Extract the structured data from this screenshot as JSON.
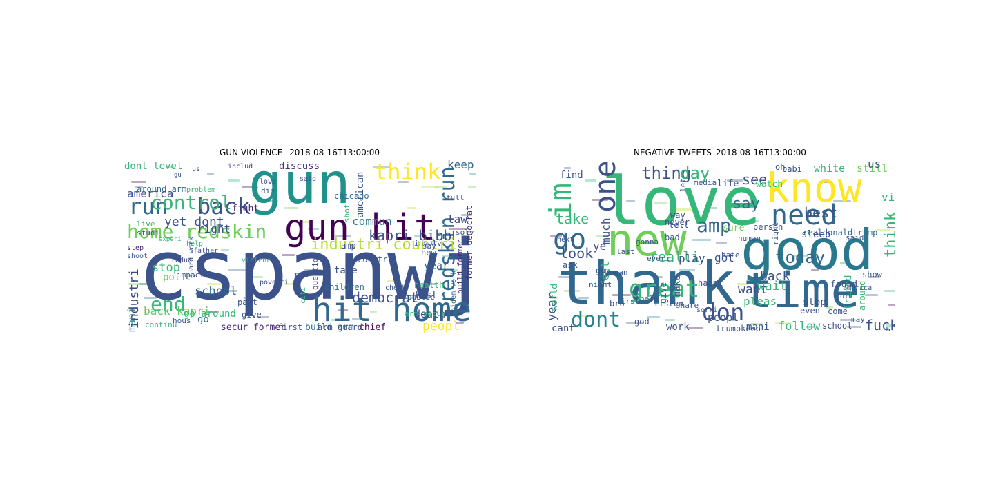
{
  "panels": [
    {
      "title": "GUN VIOLENCE _2018-08-16T13:00:00",
      "words": [
        {
          "text": "cspanwj",
          "color": "#3b528b"
        },
        {
          "text": "gun",
          "color": "#21918c"
        },
        {
          "text": "gun hit",
          "color": "#440154"
        },
        {
          "text": "hit home",
          "color": "#31688e"
        },
        {
          "text": "back",
          "color": "#3b528b"
        },
        {
          "text": "run",
          "color": "#31688e"
        },
        {
          "text": "control",
          "color": "#35b779"
        },
        {
          "text": "home redskin",
          "color": "#6ece58"
        },
        {
          "text": "think",
          "color": "#fde725"
        },
        {
          "text": "redskin run",
          "color": "#31688e"
        },
        {
          "text": "kapri bibb",
          "color": "#3b528b"
        },
        {
          "text": "industri countri",
          "color": "#b5de2b"
        },
        {
          "text": "end",
          "color": "#35b779"
        },
        {
          "text": "industri",
          "color": "#3e4989"
        },
        {
          "text": "mani",
          "color": "#26828e"
        },
        {
          "text": "yet dont",
          "color": "#3b528b"
        },
        {
          "text": "dont level",
          "color": "#35b779"
        },
        {
          "text": "discuss",
          "color": "#46327e"
        },
        {
          "text": "includ",
          "color": "#414487"
        },
        {
          "text": "keep",
          "color": "#31688e"
        },
        {
          "text": "around arm",
          "color": "#31688e"
        },
        {
          "text": "america",
          "color": "#3b528b"
        },
        {
          "text": "fight",
          "color": "#482878"
        },
        {
          "text": "right",
          "color": "#3b528b"
        },
        {
          "text": "commun",
          "color": "#26828e"
        },
        {
          "text": "american",
          "color": "#3b528b"
        },
        {
          "text": "law",
          "color": "#3e4989"
        },
        {
          "text": "former democrat",
          "color": "#472d7b"
        },
        {
          "text": "build former",
          "color": "#472d7b"
        },
        {
          "text": "stop",
          "color": "#35b779"
        },
        {
          "text": "school",
          "color": "#31688e"
        },
        {
          "text": "back kapri",
          "color": "#5ec962"
        },
        {
          "text": "go around",
          "color": "#35b779"
        },
        {
          "text": "democrat",
          "color": "#3b528b"
        },
        {
          "text": "peopl",
          "color": "#fde725"
        },
        {
          "text": "death",
          "color": "#3e4989"
        },
        {
          "text": "last",
          "color": "#3b528b"
        },
        {
          "text": "year",
          "color": "#31688e"
        },
        {
          "text": "secur former",
          "color": "#482878"
        },
        {
          "text": "build arm",
          "color": "#31688e"
        },
        {
          "text": "chief",
          "color": "#440154"
        },
        {
          "text": "go",
          "color": "#31688e"
        },
        {
          "text": "chicago",
          "color": "#31688e"
        },
        {
          "text": "shot",
          "color": "#35b779"
        },
        {
          "text": "children",
          "color": "#31688e"
        },
        {
          "text": "first",
          "color": "#3b528b"
        },
        {
          "text": "problem",
          "color": "#35b779"
        },
        {
          "text": "live",
          "color": "#35b779"
        },
        {
          "text": "studi",
          "color": "#3b528b"
        },
        {
          "text": "step",
          "color": "#482878"
        },
        {
          "text": "shoot",
          "color": "#3b528b"
        },
        {
          "text": "experi",
          "color": "#35b779"
        },
        {
          "text": "reduc",
          "color": "#3e4989"
        },
        {
          "text": "impact",
          "color": "#3b528b"
        },
        {
          "text": "polic",
          "color": "#6ece58"
        },
        {
          "text": "health",
          "color": "#35b779"
        },
        {
          "text": "take",
          "color": "#3b528b"
        },
        {
          "text": "amp",
          "color": "#3b528b"
        },
        {
          "text": "new",
          "color": "#31688e"
        },
        {
          "text": "say",
          "color": "#3b528b"
        },
        {
          "text": "solv",
          "color": "#3b528b"
        },
        {
          "text": "involv",
          "color": "#3b528b"
        },
        {
          "text": "question",
          "color": "#3b528b"
        },
        {
          "text": "public",
          "color": "#3b528b"
        },
        {
          "text": "full",
          "color": "#3b528b"
        },
        {
          "text": "die",
          "color": "#3b528b"
        },
        {
          "text": "love",
          "color": "#3b528b"
        },
        {
          "text": "help",
          "color": "#35b779"
        },
        {
          "text": "father",
          "color": "#3b528b"
        },
        {
          "text": "guard work",
          "color": "#3b528b"
        },
        {
          "text": "give",
          "color": "#3b528b"
        },
        {
          "text": "part",
          "color": "#3b528b"
        },
        {
          "text": "hous",
          "color": "#3b528b"
        },
        {
          "text": "continu",
          "color": "#35b779"
        },
        {
          "text": "epidem work",
          "color": "#31688e"
        },
        {
          "text": "arm guard",
          "color": "#3b528b"
        },
        {
          "text": "arm secur",
          "color": "#35b779"
        },
        {
          "text": "countri",
          "color": "#3b528b"
        },
        {
          "text": "said",
          "color": "#3b528b"
        },
        {
          "text": "us",
          "color": "#3b528b"
        },
        {
          "text": "gu",
          "color": "#3b528b"
        },
        {
          "text": "poverti",
          "color": "#3b528b"
        },
        {
          "text": "violenc",
          "color": "#35b779"
        },
        {
          "text": "citi",
          "color": "#35b779"
        },
        {
          "text": "time",
          "color": "#3b528b"
        },
        {
          "text": "check",
          "color": "#3b528b"
        }
      ]
    },
    {
      "title": "NEGATIVE TWEETS_2018-08-16T13:00:00",
      "words": [
        {
          "text": "love",
          "color": "#35b779"
        },
        {
          "text": "thank",
          "color": "#31688e"
        },
        {
          "text": "good",
          "color": "#2a788e"
        },
        {
          "text": "time",
          "color": "#31688e"
        },
        {
          "text": "know",
          "color": "#fde725"
        },
        {
          "text": "new",
          "color": "#6ece58"
        },
        {
          "text": "need",
          "color": "#31688e"
        },
        {
          "text": "im",
          "color": "#35b779"
        },
        {
          "text": "one",
          "color": "#3b528b"
        },
        {
          "text": "go",
          "color": "#31688e"
        },
        {
          "text": "amp",
          "color": "#31688e"
        },
        {
          "text": "great",
          "color": "#35b779"
        },
        {
          "text": "dont",
          "color": "#26828e"
        },
        {
          "text": "don",
          "color": "#3b528b"
        },
        {
          "text": "thing",
          "color": "#3b528b"
        },
        {
          "text": "day",
          "color": "#35b779"
        },
        {
          "text": "much",
          "color": "#3b528b"
        },
        {
          "text": "see",
          "color": "#3b528b"
        },
        {
          "text": "say",
          "color": "#31688e"
        },
        {
          "text": "take",
          "color": "#35b779"
        },
        {
          "text": "best",
          "color": "#3b528b"
        },
        {
          "text": "look",
          "color": "#3b528b"
        },
        {
          "text": "realli",
          "color": "#35b779"
        },
        {
          "text": "play",
          "color": "#3b528b"
        },
        {
          "text": "got",
          "color": "#3b528b"
        },
        {
          "text": "today",
          "color": "#31688e"
        },
        {
          "text": "back",
          "color": "#3b528b"
        },
        {
          "text": "want",
          "color": "#3b528b"
        },
        {
          "text": "wait",
          "color": "#35b779"
        },
        {
          "text": "think",
          "color": "#35b779"
        },
        {
          "text": "ye",
          "color": "#3b528b"
        },
        {
          "text": "year",
          "color": "#3b528b"
        },
        {
          "text": "pleas",
          "color": "#35b779"
        },
        {
          "text": "stop",
          "color": "#3b528b"
        },
        {
          "text": "work",
          "color": "#3b528b"
        },
        {
          "text": "cant",
          "color": "#3b528b"
        },
        {
          "text": "mani",
          "color": "#3b528b"
        },
        {
          "text": "follow",
          "color": "#35b779"
        },
        {
          "text": "fuck",
          "color": "#3b528b"
        },
        {
          "text": "white",
          "color": "#35b779"
        },
        {
          "text": "still",
          "color": "#6ece58"
        },
        {
          "text": "us",
          "color": "#3b528b"
        },
        {
          "text": "life",
          "color": "#3b528b"
        },
        {
          "text": "watch",
          "color": "#35b779"
        },
        {
          "text": "via",
          "color": "#35b779"
        },
        {
          "text": "find",
          "color": "#3b528b"
        },
        {
          "text": "never",
          "color": "#3b528b"
        },
        {
          "text": "feel",
          "color": "#35b779"
        },
        {
          "text": "let",
          "color": "#3b528b"
        },
        {
          "text": "realdonaldtrump",
          "color": "#31688e"
        },
        {
          "text": "peopl",
          "color": "#3b528b"
        },
        {
          "text": "friend",
          "color": "#35b779"
        },
        {
          "text": "trumpkeep",
          "color": "#3b528b"
        },
        {
          "text": "start",
          "color": "#3b528b"
        },
        {
          "text": "give",
          "color": "#3b528b"
        },
        {
          "text": "make",
          "color": "#3b528b"
        },
        {
          "text": "last",
          "color": "#3b528b"
        },
        {
          "text": "ask",
          "color": "#3b528b"
        },
        {
          "text": "guy",
          "color": "#3b528b"
        },
        {
          "text": "bro",
          "color": "#3b528b"
        },
        {
          "text": "world",
          "color": "#35b779"
        },
        {
          "text": "sleep",
          "color": "#3b528b"
        },
        {
          "text": "oh",
          "color": "#3b528b"
        },
        {
          "text": "way",
          "color": "#3b528b"
        },
        {
          "text": "tell",
          "color": "#3b528b"
        },
        {
          "text": "bad",
          "color": "#3b528b"
        },
        {
          "text": "person",
          "color": "#3b528b"
        },
        {
          "text": "babi",
          "color": "#3b528b"
        },
        {
          "text": "said",
          "color": "#3b528b"
        },
        {
          "text": "found",
          "color": "#3b528b"
        },
        {
          "text": "come",
          "color": "#3b528b"
        },
        {
          "text": "school",
          "color": "#3b528b"
        },
        {
          "text": "even",
          "color": "#3b528b"
        },
        {
          "text": "listen",
          "color": "#3b528b"
        },
        {
          "text": "night",
          "color": "#3b528b"
        },
        {
          "text": "help",
          "color": "#3b528b"
        },
        {
          "text": "sure",
          "color": "#6ece58"
        },
        {
          "text": "hate",
          "color": "#3b528b"
        },
        {
          "text": "happi",
          "color": "#3b528b"
        },
        {
          "text": "share",
          "color": "#3b528b"
        },
        {
          "text": "right",
          "color": "#3b528b"
        },
        {
          "text": "human",
          "color": "#3b528b"
        },
        {
          "text": "first",
          "color": "#3b528b"
        },
        {
          "text": "gonna",
          "color": "#3b528b"
        },
        {
          "text": "everi",
          "color": "#3b528b"
        },
        {
          "text": "mean",
          "color": "#3b528b"
        },
        {
          "text": "sorri",
          "color": "#3b528b"
        },
        {
          "text": "media",
          "color": "#3b528b"
        },
        {
          "text": "next",
          "color": "#3b528b"
        },
        {
          "text": "show",
          "color": "#3b528b"
        },
        {
          "text": "around",
          "color": "#35b779"
        },
        {
          "text": "join",
          "color": "#3b528b"
        },
        {
          "text": "may",
          "color": "#3b528b"
        },
        {
          "text": "god",
          "color": "#3b528b"
        },
        {
          "text": "america",
          "color": "#3b528b"
        }
      ]
    }
  ]
}
